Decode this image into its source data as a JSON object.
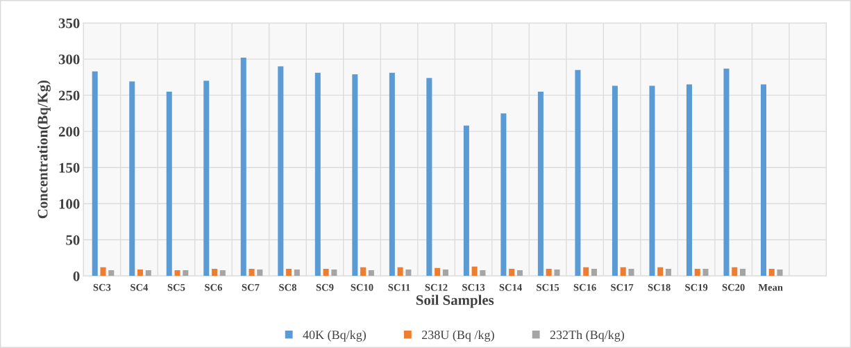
{
  "chart_data": {
    "type": "bar",
    "xlabel": "Soil Samples",
    "ylabel": "Concentration(Bq/Kg)",
    "categories": [
      "SC3",
      "SC4",
      "SC5",
      "SC6",
      "SC7",
      "SC8",
      "SC9",
      "SC10",
      "SC11",
      "SC12",
      "SC13",
      "SC14",
      "SC15",
      "SC16",
      "SC17",
      "SC18",
      "SC19",
      "SC20",
      "Mean",
      null
    ],
    "series": [
      {
        "name": "40K (Bq/kg)",
        "color": "#5b9bd5",
        "values": [
          283,
          269,
          255,
          270,
          302,
          290,
          281,
          279,
          281,
          274,
          208,
          225,
          255,
          285,
          263,
          263,
          265,
          287,
          265,
          null
        ]
      },
      {
        "name": "238U (Bq /kg)",
        "color": "#ed7d31",
        "values": [
          12,
          9,
          8,
          10,
          10,
          10,
          10,
          12,
          12,
          11,
          13,
          10,
          10,
          12,
          12,
          12,
          10,
          12,
          10,
          null
        ]
      },
      {
        "name": "232Th (Bq/kg)",
        "color": "#a5a5a5",
        "values": [
          8,
          8,
          8,
          8,
          9,
          9,
          9,
          8,
          9,
          9,
          8,
          8,
          9,
          10,
          10,
          10,
          10,
          10,
          9,
          null
        ]
      }
    ],
    "ylim": [
      0,
      350
    ],
    "yticks": [
      0,
      50,
      100,
      150,
      200,
      250,
      300,
      350
    ],
    "grid": true,
    "legend": "bottom"
  }
}
